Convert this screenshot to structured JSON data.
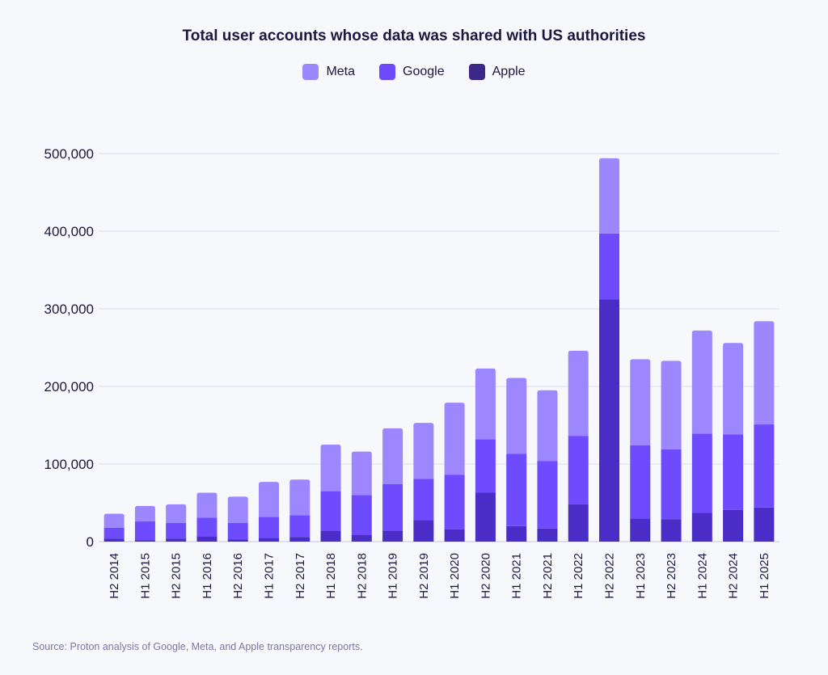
{
  "chart_data": {
    "type": "bar",
    "stacked": true,
    "title": "Total user accounts whose data was shared with US authorities",
    "categories": [
      "H2 2014",
      "H1 2015",
      "H2 2015",
      "H1 2016",
      "H2 2016",
      "H1 2017",
      "H2 2017",
      "H1 2018",
      "H2 2018",
      "H1 2019",
      "H2 2019",
      "H1 2020",
      "H2 2020",
      "H1 2021",
      "H2 2021",
      "H1 2022",
      "H2 2022",
      "H1 2023",
      "H2 2023",
      "H1 2024",
      "H2 2024",
      "H1 2025"
    ],
    "series": [
      {
        "name": "Apple",
        "color": "#4a2cc7",
        "values": [
          4000,
          2000,
          4000,
          7000,
          3000,
          5000,
          6000,
          14000,
          9000,
          14000,
          28000,
          16000,
          63000,
          20000,
          17000,
          48000,
          312000,
          30000,
          29000,
          37000,
          41000,
          44000
        ]
      },
      {
        "name": "Google",
        "color": "#6f4bff",
        "values": [
          14000,
          24000,
          20000,
          24000,
          21000,
          27000,
          28000,
          51000,
          51000,
          60000,
          53000,
          70000,
          69000,
          93000,
          87000,
          88000,
          85000,
          94000,
          90000,
          102000,
          97000,
          107000
        ]
      },
      {
        "name": "Meta",
        "color": "#9c87ff",
        "values": [
          18000,
          20000,
          24000,
          32000,
          34000,
          45000,
          46000,
          60000,
          56000,
          72000,
          72000,
          93000,
          91000,
          98000,
          91000,
          110000,
          97000,
          111000,
          114000,
          133000,
          118000,
          133000
        ]
      }
    ],
    "legend_order": [
      "Meta",
      "Google",
      "Apple"
    ],
    "ylim": [
      0,
      500000
    ],
    "yticks": [
      0,
      100000,
      200000,
      300000,
      400000,
      500000
    ],
    "ytick_labels": [
      "0",
      "100,000",
      "200,000",
      "300,000",
      "400,000",
      "500,000"
    ],
    "xlabel": "",
    "ylabel": "",
    "grid": true,
    "legend_position": "top-center"
  },
  "source": "Source: Proton analysis of Google, Meta, and Apple transparency reports."
}
